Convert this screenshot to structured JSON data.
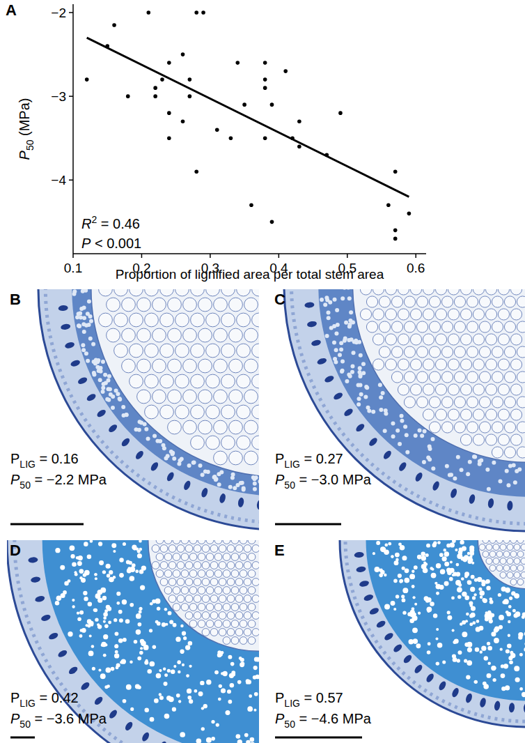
{
  "chart_data": {
    "type": "scatter",
    "panel_label": "A",
    "x_label": "Proportion of lignified area per total stem area",
    "y_label": {
      "main": "P",
      "sub": "50",
      "rest": " (MPa)"
    },
    "x": [
      0.12,
      0.15,
      0.16,
      0.18,
      0.21,
      0.22,
      0.22,
      0.23,
      0.24,
      0.24,
      0.24,
      0.26,
      0.26,
      0.27,
      0.27,
      0.28,
      0.28,
      0.29,
      0.31,
      0.33,
      0.34,
      0.35,
      0.36,
      0.38,
      0.38,
      0.38,
      0.38,
      0.39,
      0.39,
      0.41,
      0.42,
      0.43,
      0.43,
      0.47,
      0.49,
      0.56,
      0.57,
      0.57,
      0.57,
      0.59
    ],
    "values": [
      -2.8,
      -2.4,
      -2.15,
      -3.0,
      -2.0,
      -2.9,
      -3.0,
      -2.8,
      -2.6,
      -3.2,
      -3.5,
      -2.5,
      -3.3,
      -2.8,
      -3.0,
      -2.0,
      -3.9,
      -2.0,
      -3.4,
      -3.5,
      -2.6,
      -3.1,
      -4.3,
      -2.6,
      -2.8,
      -2.9,
      -3.5,
      -3.1,
      -4.5,
      -2.7,
      -3.5,
      -3.3,
      -3.6,
      -3.7,
      -3.2,
      -4.3,
      -3.9,
      -4.6,
      -4.7,
      -4.4
    ],
    "color": "#000000",
    "marker": "circle",
    "xlim": [
      0.1,
      0.615
    ],
    "ylim": [
      -4.88,
      -1.9
    ],
    "xticks": [
      0.1,
      0.2,
      0.3,
      0.4,
      0.5,
      0.6
    ],
    "yticks": [
      {
        "value": -4,
        "label": "−4"
      },
      {
        "value": -3,
        "label": "−3"
      },
      {
        "value": -2,
        "label": "−2"
      }
    ],
    "fit_line": {
      "x": [
        0.12,
        0.59
      ],
      "y": [
        -2.3,
        -4.2
      ]
    },
    "annotations": [
      {
        "main": "R",
        "sup": "2",
        "rest": " = 0.46"
      },
      {
        "main": "P",
        "rest": " < 0.001"
      }
    ]
  },
  "panels": [
    {
      "letter": "B",
      "lines": [
        {
          "main": "P",
          "sub": "LIG",
          "rest": " = 0.16"
        },
        {
          "main": "P",
          "sub": "50",
          "rest": " = −2.2 MPa"
        }
      ]
    },
    {
      "letter": "C",
      "lines": [
        {
          "main": "P",
          "sub": "LIG",
          "rest": " = 0.27"
        },
        {
          "main": "P",
          "sub": "50",
          "rest": " = −3.0 MPa"
        }
      ]
    },
    {
      "letter": "D",
      "lines": [
        {
          "main": "P",
          "sub": "LIG",
          "rest": " = 0.42"
        },
        {
          "main": "P",
          "sub": "50",
          "rest": " = −3.6 MPa"
        }
      ]
    },
    {
      "letter": "E",
      "lines": [
        {
          "main": "P",
          "sub": "LIG",
          "rest": " = 0.57"
        },
        {
          "main": "P",
          "sub": "50",
          "rest": " = −4.6 MPa"
        }
      ]
    }
  ]
}
